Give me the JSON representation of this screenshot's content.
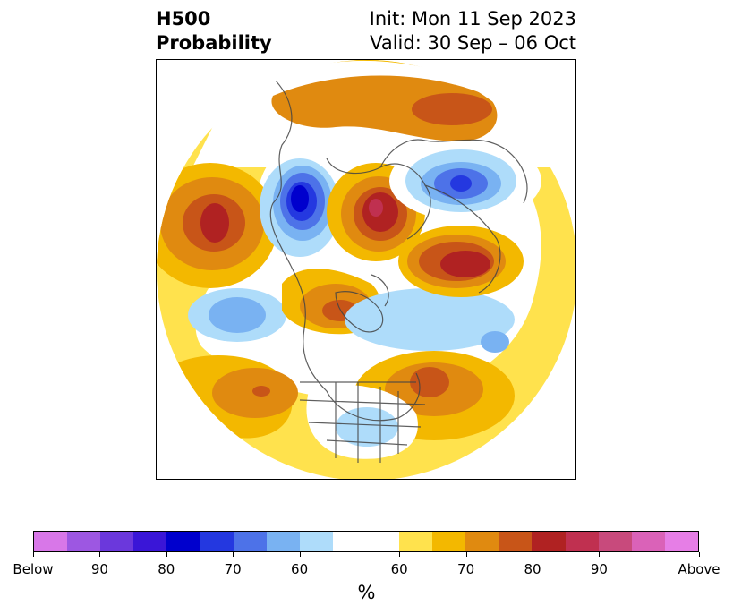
{
  "header": {
    "title_line1": "H500",
    "title_line2": "Probability",
    "init": "Init: Mon 11 Sep 2023",
    "valid": "Valid: 30 Sep – 06 Oct"
  },
  "colorbar": {
    "colors": [
      "#d877e8",
      "#9d57e2",
      "#6b38dc",
      "#3a16d7",
      "#0000cd",
      "#2438e0",
      "#4d72e8",
      "#79b2f2",
      "#aedcfa",
      "#ffffff",
      "#ffffff",
      "#ffe24d",
      "#f3b800",
      "#e08a10",
      "#c85518",
      "#b02222",
      "#c03050",
      "#c84a7c",
      "#da62b8",
      "#e67ee6"
    ],
    "tick_labels": [
      "Below",
      "90",
      "80",
      "70",
      "60",
      "60",
      "70",
      "80",
      "90",
      "Above"
    ],
    "unit_label": "%"
  },
  "map": {
    "projection": "north-polar-stereographic",
    "features": [
      {
        "name": "North Pacific / Asia anomaly",
        "sign": "above",
        "max_category": "80"
      },
      {
        "name": "Scandinavia / North Sea anomaly",
        "sign": "above",
        "max_category": "80"
      },
      {
        "name": "Western Russia anomaly",
        "sign": "above",
        "max_category": "80"
      },
      {
        "name": "Western Europe anomaly",
        "sign": "below",
        "max_category": "80"
      },
      {
        "name": "Siberia anomaly",
        "sign": "below",
        "max_category": "70"
      },
      {
        "name": "Canadian Arctic anomaly",
        "sign": "above",
        "max_category": "70"
      },
      {
        "name": "North Atlantic anomaly",
        "sign": "above",
        "max_category": "70"
      },
      {
        "name": "Alaska / Bering anomaly",
        "sign": "below",
        "max_category": "60"
      },
      {
        "name": "United States anomaly",
        "sign": "below",
        "max_category": "60"
      }
    ]
  }
}
